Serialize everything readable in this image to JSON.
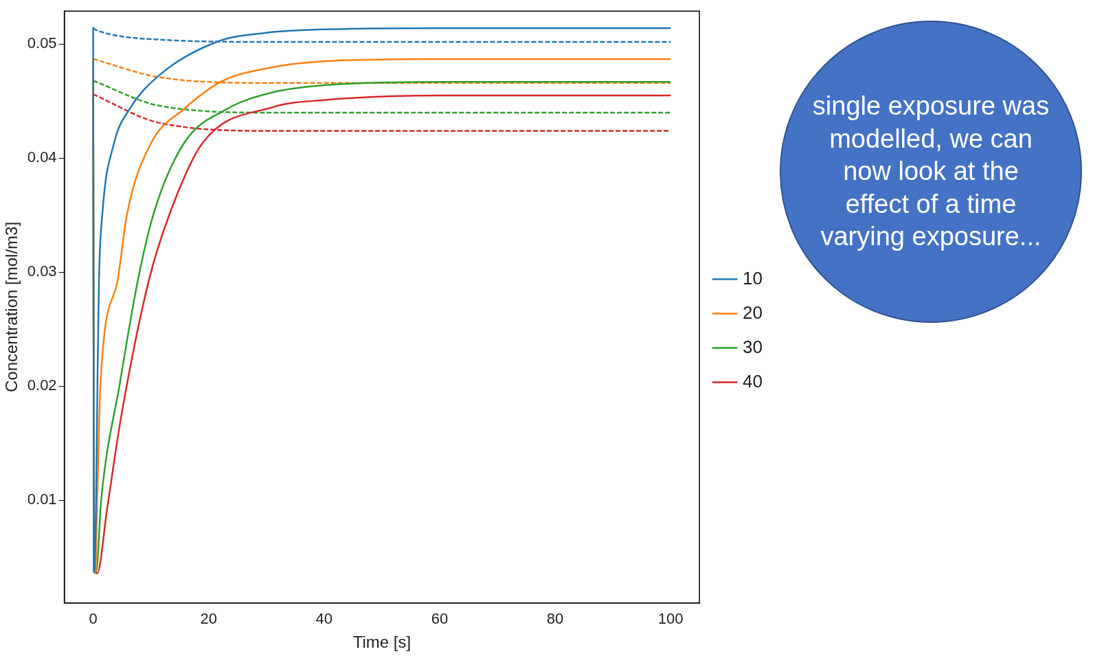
{
  "chart_data": {
    "type": "line",
    "xlabel": "Time [s]",
    "ylabel": "Concentration [mol/m3]",
    "xlim": [
      -5,
      105
    ],
    "xticks": [
      0,
      20,
      40,
      60,
      80,
      100
    ],
    "ylim": [
      0.001,
      0.0529
    ],
    "yticks": [
      0.01,
      0.02,
      0.03,
      0.04,
      0.05
    ],
    "grid": false,
    "legend": "right",
    "marker": "none",
    "annotations": [
      "single exposure was modelled, we can now look at the effect of a time varying exposure..."
    ],
    "series": [
      {
        "name": "10",
        "color": "#1f77b4",
        "line_style": "solid",
        "x": [
          0,
          0.15,
          0.45,
          0.74,
          1.0,
          1.6,
          3.6,
          6.3,
          11.5,
          21.4,
          30,
          40,
          60,
          100
        ],
        "values": [
          0.0515,
          0.0037,
          0.0083,
          0.0202,
          0.0292,
          0.0352,
          0.0413,
          0.0443,
          0.0473,
          0.0502,
          0.051,
          0.0513,
          0.0514,
          0.0514
        ]
      },
      {
        "name": "20",
        "color": "#ff7f0e",
        "line_style": "solid",
        "x": [
          0,
          0.15,
          0.35,
          0.7,
          1.26,
          4.2,
          5.9,
          10.0,
          15.7,
          22.1,
          31.3,
          40,
          60,
          100
        ],
        "values": [
          0.0487,
          0.0037,
          0.0037,
          0.0101,
          0.0202,
          0.0292,
          0.0352,
          0.0413,
          0.0443,
          0.0467,
          0.048,
          0.0485,
          0.0487,
          0.0487
        ]
      },
      {
        "name": "30",
        "color": "#2ca02c",
        "line_style": "solid",
        "x": [
          0,
          0.15,
          0.5,
          1.4,
          4.6,
          7.7,
          10.5,
          15.7,
          23.1,
          31.3,
          40,
          60,
          100
        ],
        "values": [
          0.0468,
          0.0037,
          0.0037,
          0.0101,
          0.0202,
          0.0292,
          0.0352,
          0.0413,
          0.0443,
          0.0458,
          0.0464,
          0.0467,
          0.0467
        ]
      },
      {
        "name": "40",
        "color": "#d62728",
        "line_style": "solid",
        "x": [
          0,
          0.15,
          0.7,
          2.4,
          4.8,
          9.6,
          13.3,
          18.9,
          31.3,
          40,
          60,
          100
        ],
        "values": [
          0.0456,
          0.0037,
          0.0036,
          0.0092,
          0.0172,
          0.0292,
          0.0352,
          0.0413,
          0.0445,
          0.0451,
          0.0455,
          0.0455
        ]
      },
      {
        "color": "#1f77b4",
        "line_style": "dashed",
        "x": [
          0,
          0.7,
          11.5,
          31,
          60,
          100
        ],
        "values": [
          0.0514,
          0.0512,
          0.0504,
          0.0502,
          0.0502,
          0.0502
        ]
      },
      {
        "color": "#ff7f0e",
        "line_style": "dashed",
        "x": [
          0,
          11.5,
          31,
          60,
          100
        ],
        "values": [
          0.0487,
          0.0471,
          0.0466,
          0.0466,
          0.0466
        ]
      },
      {
        "color": "#2ca02c",
        "line_style": "dashed",
        "x": [
          0,
          11.5,
          31,
          60,
          100
        ],
        "values": [
          0.0468,
          0.0446,
          0.044,
          0.044,
          0.044
        ]
      },
      {
        "color": "#d62728",
        "line_style": "dashed",
        "x": [
          0,
          11.5,
          31,
          60,
          100
        ],
        "values": [
          0.0456,
          0.0431,
          0.0424,
          0.0424,
          0.0424
        ]
      }
    ]
  }
}
